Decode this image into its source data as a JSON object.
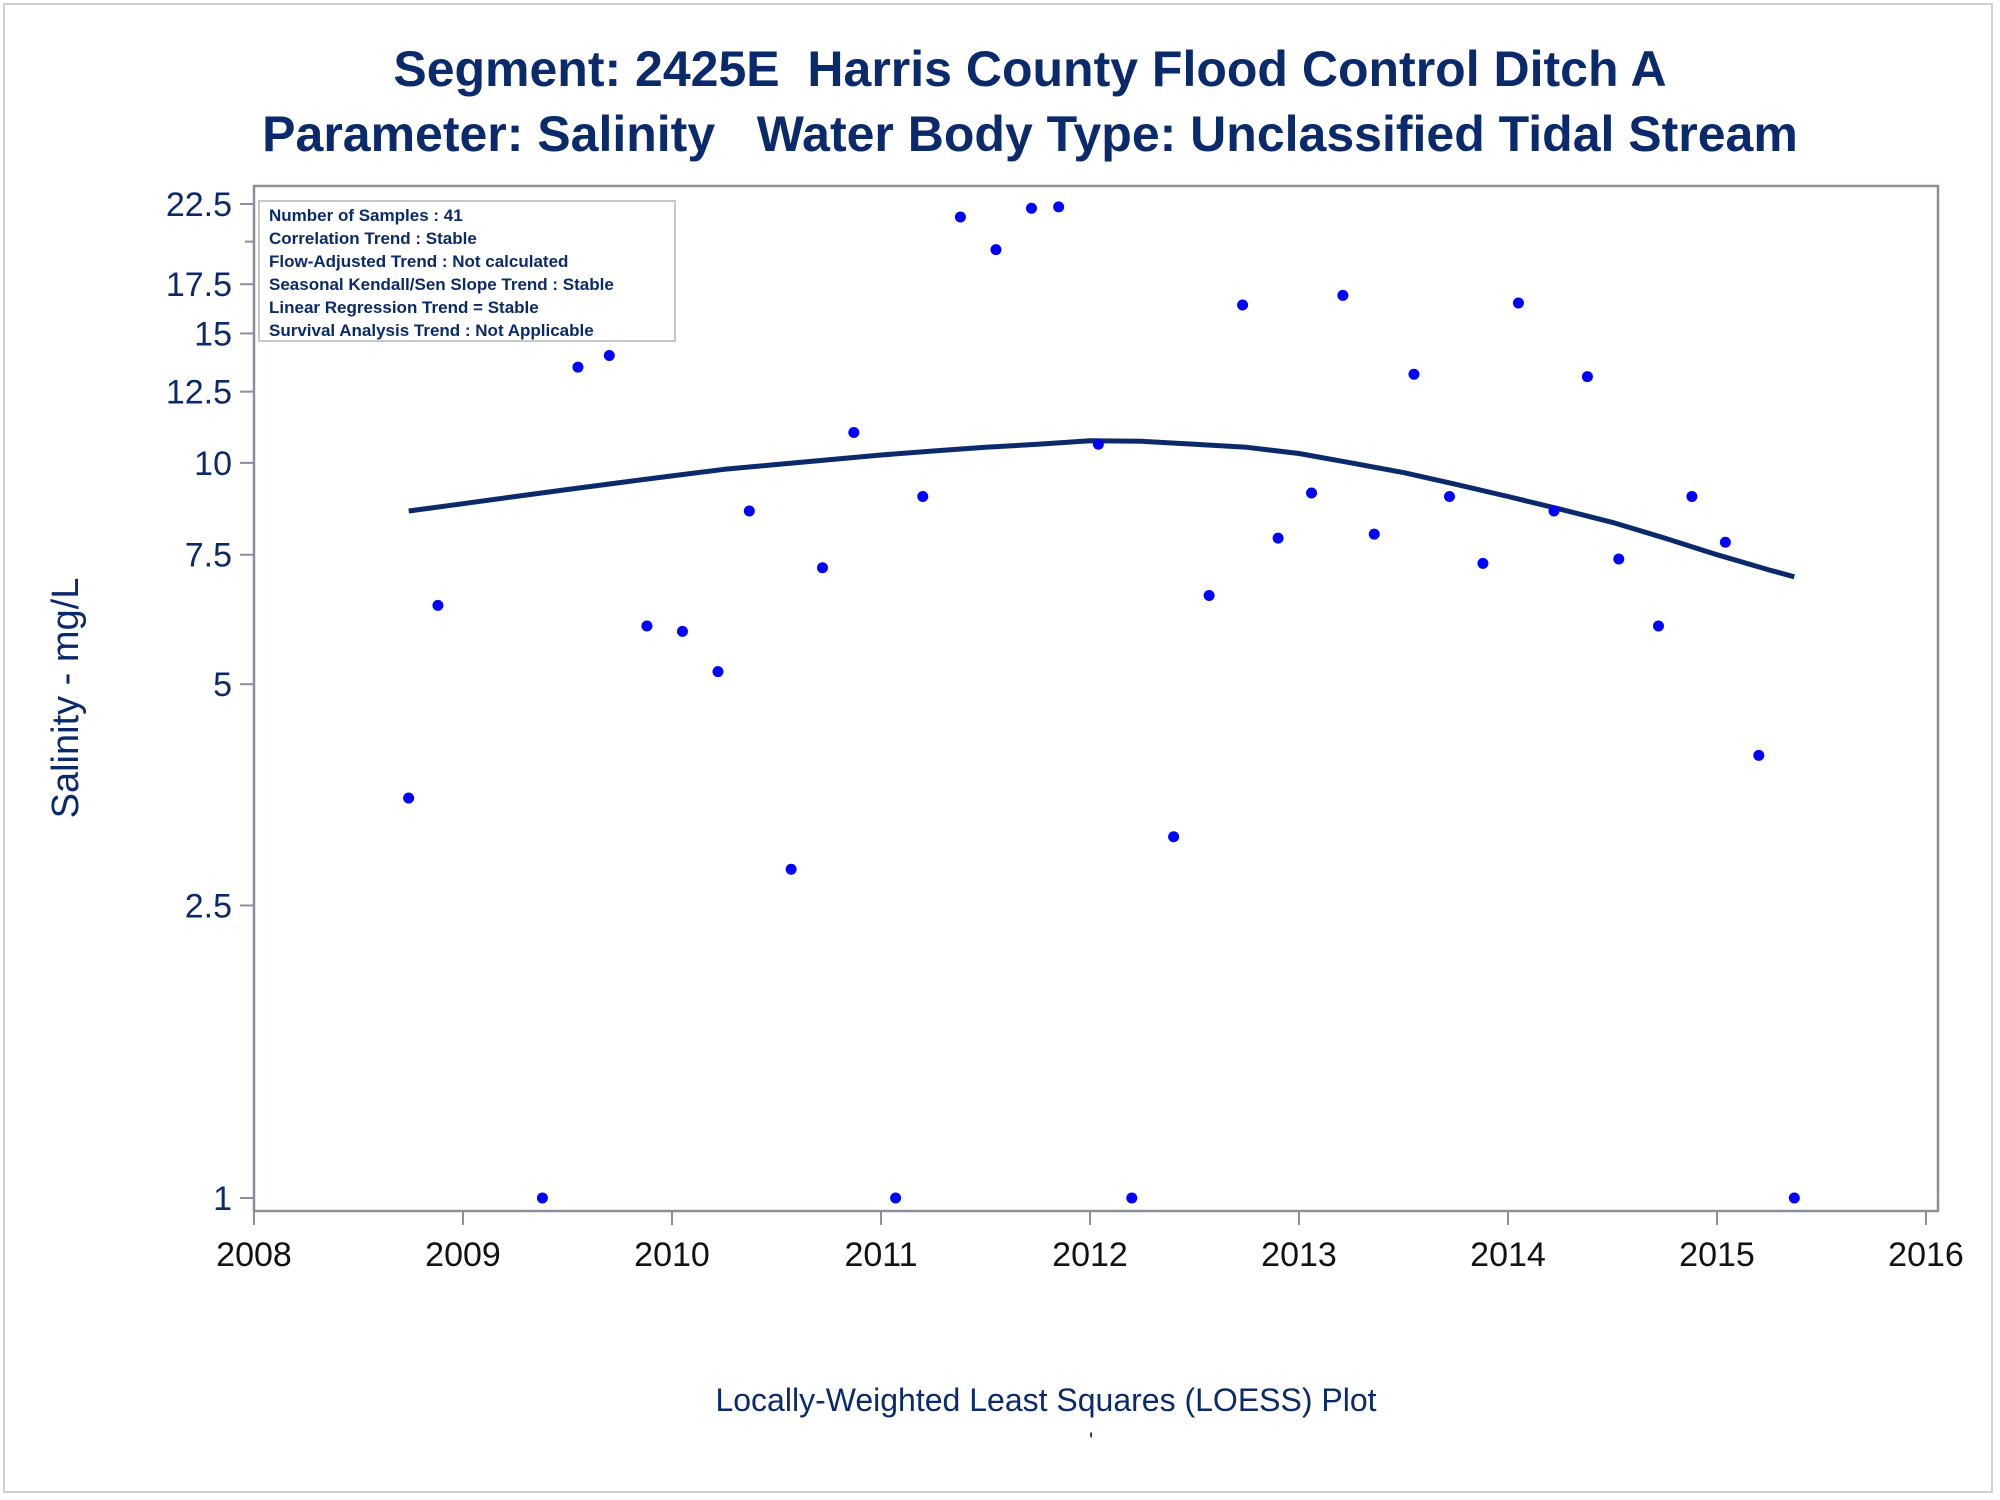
{
  "titles": {
    "line1": "Segment: 2425E  Harris County Flood Control Ditch A",
    "line2": "Parameter: Salinity   Water Body Type: Unclassified Tidal Stream"
  },
  "footnote": "Locally-Weighted Least Squares (LOESS) Plot",
  "footnote_mark": "'",
  "legend_box": {
    "lines": [
      "Number of Samples : 41",
      "Correlation Trend : Stable",
      "Flow-Adjusted Trend : Not calculated",
      "Seasonal Kendall/Sen Slope Trend : Stable",
      "Linear Regression Trend = Stable",
      "Survival Analysis Trend : Not Applicable"
    ]
  },
  "colors": {
    "text": "#0b2a6b",
    "points": "#0000ff",
    "loess": "#0b2a6b",
    "axis": "#8a8f99"
  },
  "chart_data": {
    "type": "scatter",
    "title": "Segment: 2425E  Harris County Flood Control Ditch A",
    "subtitle": "Parameter: Salinity   Water Body Type: Unclassified Tidal Stream",
    "xlabel": "",
    "ylabel": "Salinity - mg/L",
    "y_scale": "log",
    "xlim": [
      2008,
      2016
    ],
    "ylim": [
      1,
      22.5
    ],
    "x_ticks": [
      2008,
      2009,
      2010,
      2011,
      2012,
      2013,
      2014,
      2015,
      2016
    ],
    "y_ticks": [
      1,
      2.5,
      5,
      7.5,
      10,
      12.5,
      15,
      17.5,
      22.5
    ],
    "y_tick_labels": [
      "1",
      "2.5",
      "5",
      "7.5",
      "10",
      "12.5",
      "15",
      "17.5",
      "22.5"
    ],
    "y_minor_ticks": [
      20
    ],
    "grid": false,
    "legend_placement": "top-left",
    "series": [
      {
        "type": "scatter",
        "x": [
          2008.74,
          2008.88,
          2009.07,
          2009.21,
          2009.38,
          2009.55,
          2009.7,
          2009.88,
          2010.05,
          2010.22,
          2010.37,
          2010.57,
          2010.72,
          2010.87,
          2011.07,
          2011.2,
          2011.38,
          2011.55,
          2011.72,
          2011.85,
          2012.04,
          2012.2,
          2012.4,
          2012.57,
          2012.73,
          2012.9,
          2013.06,
          2013.21,
          2013.36,
          2013.55,
          2013.72,
          2013.88,
          2014.05,
          2014.22,
          2014.38,
          2014.53,
          2014.72,
          2014.88,
          2015.04,
          2015.2,
          2015.37
        ],
        "y": [
          3.5,
          6.4,
          18.0,
          17.6,
          1.0,
          13.5,
          14.0,
          6.0,
          5.9,
          5.2,
          8.6,
          2.8,
          7.2,
          11.0,
          1.0,
          9.0,
          21.6,
          19.5,
          22.2,
          22.3,
          10.6,
          1.0,
          3.1,
          6.6,
          16.4,
          7.9,
          9.1,
          16.9,
          8.0,
          13.2,
          9.0,
          7.3,
          16.5,
          8.6,
          13.1,
          7.4,
          6.0,
          9.0,
          7.8,
          4.0,
          1.0
        ]
      },
      {
        "type": "line",
        "x": [
          2008.74,
          2009.0,
          2009.25,
          2009.5,
          2009.75,
          2010.0,
          2010.25,
          2010.5,
          2010.75,
          2011.0,
          2011.25,
          2011.5,
          2011.75,
          2012.0,
          2012.25,
          2012.5,
          2012.75,
          2013.0,
          2013.25,
          2013.5,
          2013.75,
          2014.0,
          2014.25,
          2014.5,
          2014.75,
          2015.0,
          2015.25,
          2015.37
        ],
        "y": [
          8.6,
          8.8,
          9.0,
          9.2,
          9.4,
          9.6,
          9.8,
          9.95,
          10.1,
          10.25,
          10.38,
          10.5,
          10.6,
          10.72,
          10.7,
          10.6,
          10.5,
          10.3,
          10.0,
          9.7,
          9.35,
          9.0,
          8.65,
          8.3,
          7.9,
          7.5,
          7.15,
          7.0
        ]
      }
    ]
  }
}
